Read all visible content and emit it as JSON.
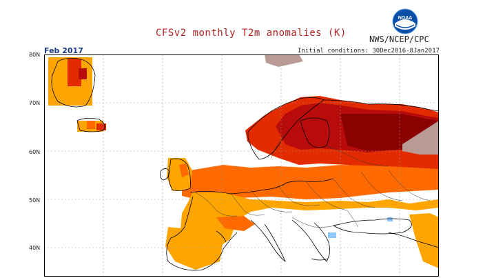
{
  "header": {
    "title": "CFSv2 monthly T2m anomalies (K)",
    "agency": "NWS/NCEP/CPC",
    "logo_text": "NOAA",
    "month": "Feb 2017",
    "initial_conditions": "Initial conditions: 30Dec2016-8Jan2017"
  },
  "axis": {
    "lat_labels": [
      "80N",
      "70N",
      "60N",
      "50N",
      "40N"
    ]
  },
  "legend_colors": {
    "lt_orange": "#ffa500",
    "orange_red": "#ff6a00",
    "red": "#e32b00",
    "dark_red": "#b80c0c",
    "maroon": "#8b0000",
    "brown_gray": "#ba9a95",
    "light_blue": "#8ec8ff"
  }
}
